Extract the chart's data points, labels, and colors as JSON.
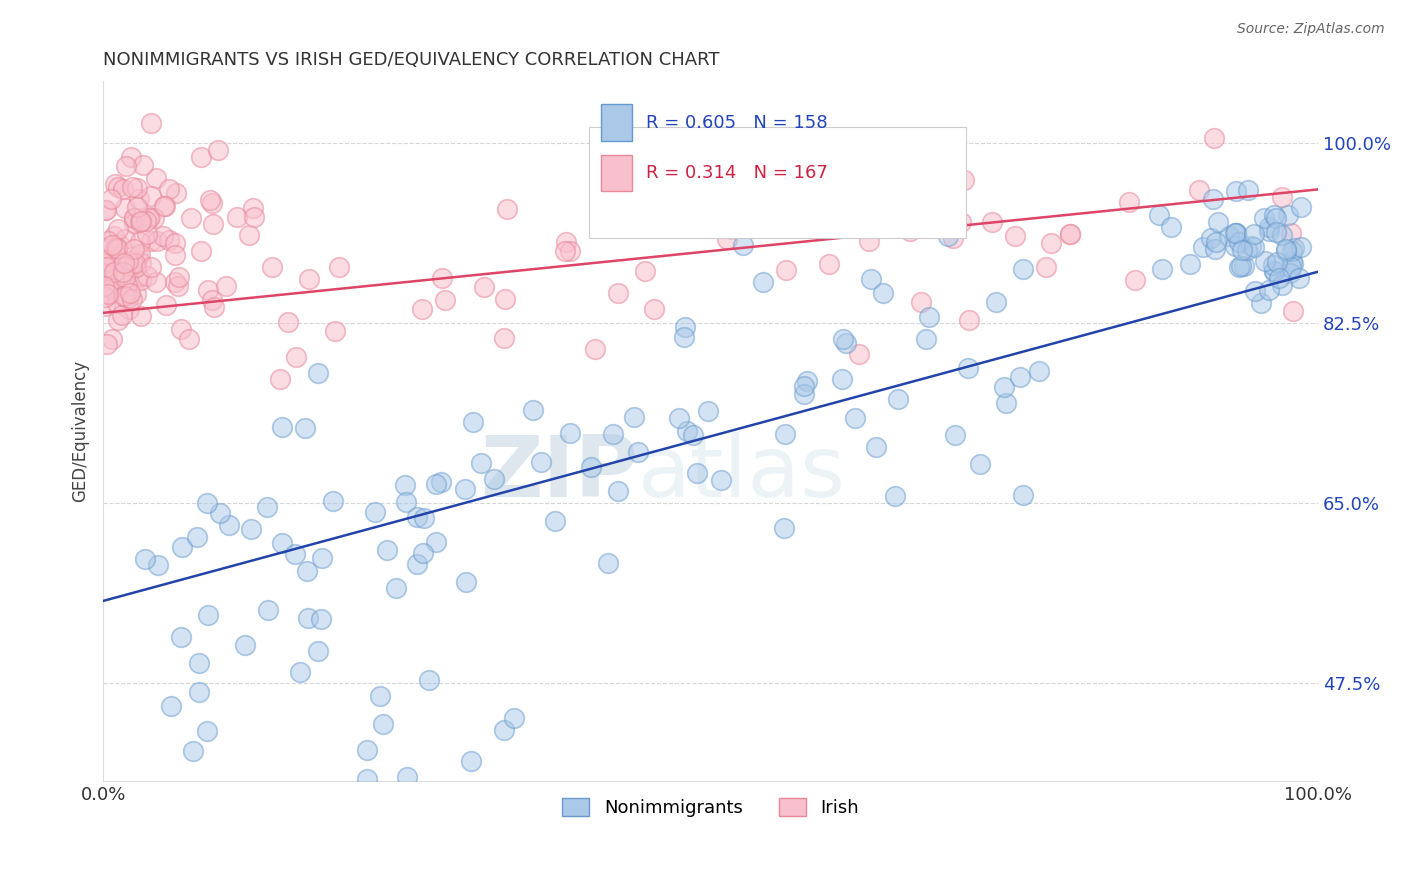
{
  "title": "NONIMMIGRANTS VS IRISH GED/EQUIVALENCY CORRELATION CHART",
  "source_text": "Source: ZipAtlas.com",
  "ylabel": "GED/Equivalency",
  "xmin": 0.0,
  "xmax": 1.0,
  "ymin": 0.38,
  "ymax": 1.06,
  "yticks": [
    0.475,
    0.65,
    0.825,
    1.0
  ],
  "ytick_labels": [
    "47.5%",
    "65.0%",
    "82.5%",
    "100.0%"
  ],
  "xtick_labels": [
    "0.0%",
    "100.0%"
  ],
  "xticks": [
    0.0,
    1.0
  ],
  "blue_R": 0.605,
  "blue_N": 158,
  "pink_R": 0.314,
  "pink_N": 167,
  "blue_facecolor": "#aac8e8",
  "blue_edgecolor": "#6699cc",
  "pink_facecolor": "#f8c0cc",
  "pink_edgecolor": "#e88899",
  "blue_line_color": "#2244aa",
  "pink_line_color": "#dd4466",
  "blue_label": "Nonimmigrants",
  "pink_label": "Irish",
  "legend_R_color_blue": "#2244bb",
  "legend_R_color_pink": "#cc2244",
  "watermark_zip": "ZIP",
  "watermark_atlas": "atlas",
  "blue_trend_x0": 0.0,
  "blue_trend_y0": 0.555,
  "blue_trend_x1": 1.0,
  "blue_trend_y1": 0.875,
  "pink_trend_x0": 0.0,
  "pink_trend_y0": 0.835,
  "pink_trend_x1": 1.0,
  "pink_trend_y1": 0.955
}
